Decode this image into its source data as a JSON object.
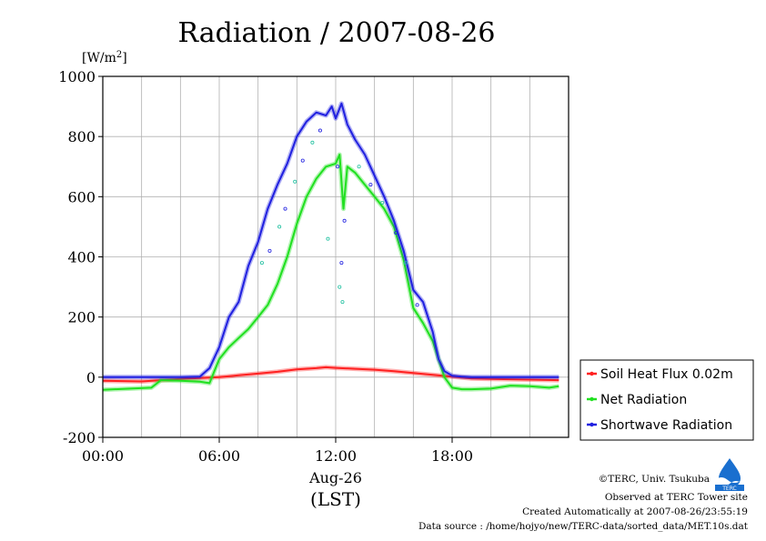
{
  "chart_data": {
    "type": "line",
    "title": "Radiation / 2007-08-26",
    "ylabel_unit": "[W/m",
    "ylabel_sup": "2",
    "ylabel_close": "]",
    "ylim": [
      -200,
      1000
    ],
    "xlim": [
      0,
      24
    ],
    "yticks": [
      1000,
      800,
      600,
      400,
      200,
      0,
      -200
    ],
    "xticks": [
      {
        "value": 0,
        "label": "00:00"
      },
      {
        "value": 6,
        "label": "06:00"
      },
      {
        "value": 12,
        "label": "12:00"
      },
      {
        "value": 18,
        "label": "18:00"
      }
    ],
    "xlabel_date": "Aug-26",
    "xlabel_tz": "(LST)",
    "grid": true,
    "legend_position": "right",
    "series": [
      {
        "name": "Soil Heat Flux 0.02m",
        "color": "#ff2020",
        "x": [
          0,
          2,
          3,
          4,
          5,
          6,
          7,
          8,
          9,
          10,
          11,
          11.5,
          12,
          13,
          14,
          15,
          16,
          17,
          18,
          19,
          20,
          22,
          23.5
        ],
        "y": [
          -12,
          -14,
          -10,
          -6,
          -3,
          0,
          6,
          12,
          18,
          26,
          30,
          33,
          31,
          28,
          25,
          20,
          14,
          8,
          2,
          -4,
          -6,
          -8,
          -10
        ]
      },
      {
        "name": "Net Radiation",
        "color": "#20e020",
        "x": [
          0,
          2.5,
          3,
          4,
          5,
          5.5,
          6,
          6.5,
          7,
          7.5,
          8,
          8.5,
          9,
          9.5,
          10,
          10.5,
          11,
          11.5,
          12,
          12.2,
          12.4,
          12.6,
          13,
          13.5,
          14,
          14.5,
          15,
          15.5,
          16,
          16.5,
          17,
          17.3,
          17.6,
          18,
          18.5,
          19,
          20,
          21,
          22,
          23,
          23.5
        ],
        "y": [
          -42,
          -35,
          -10,
          -12,
          -15,
          -20,
          60,
          100,
          130,
          160,
          200,
          240,
          310,
          400,
          510,
          600,
          660,
          700,
          710,
          740,
          560,
          700,
          680,
          640,
          600,
          560,
          500,
          390,
          230,
          180,
          120,
          60,
          0,
          -35,
          -40,
          -40,
          -38,
          -28,
          -30,
          -35,
          -30
        ]
      },
      {
        "name": "Shortwave Radiation",
        "color": "#2020e0",
        "x": [
          0,
          2,
          4,
          5,
          5.5,
          6,
          6.5,
          7,
          7.5,
          8,
          8.5,
          9,
          9.5,
          10,
          10.5,
          11,
          11.5,
          11.8,
          12,
          12.3,
          12.6,
          13,
          13.5,
          14,
          14.5,
          15,
          15.5,
          16,
          16.5,
          17,
          17.3,
          17.6,
          18,
          18.5,
          19,
          20,
          22,
          23.5
        ],
        "y": [
          0,
          0,
          0,
          2,
          30,
          100,
          200,
          250,
          370,
          450,
          560,
          640,
          710,
          800,
          850,
          880,
          870,
          900,
          860,
          910,
          840,
          790,
          740,
          670,
          600,
          520,
          420,
          290,
          250,
          150,
          60,
          20,
          5,
          2,
          0,
          0,
          0,
          0
        ]
      }
    ],
    "scatter": {
      "x": [
        8.2,
        8.6,
        9.1,
        9.4,
        9.9,
        10.3,
        10.8,
        11.2,
        11.6,
        12.1,
        12.2,
        12.3,
        12.35,
        12.45,
        13.2,
        13.8,
        14.4,
        15.1,
        15.6,
        16.2
      ],
      "y": [
        380,
        420,
        500,
        560,
        650,
        720,
        780,
        820,
        460,
        700,
        300,
        380,
        250,
        520,
        700,
        640,
        580,
        480,
        380,
        240
      ]
    }
  },
  "credits": {
    "org": "©TERC, Univ. Tsukuba",
    "observed": "Observed at TERC Tower site",
    "created": "Created Automatically at 2007-08-26/23:55:19",
    "source": "Data source : /home/hojyo/new/TERC-data/sorted_data/MET.10s.dat"
  },
  "logo_text": "TERC"
}
